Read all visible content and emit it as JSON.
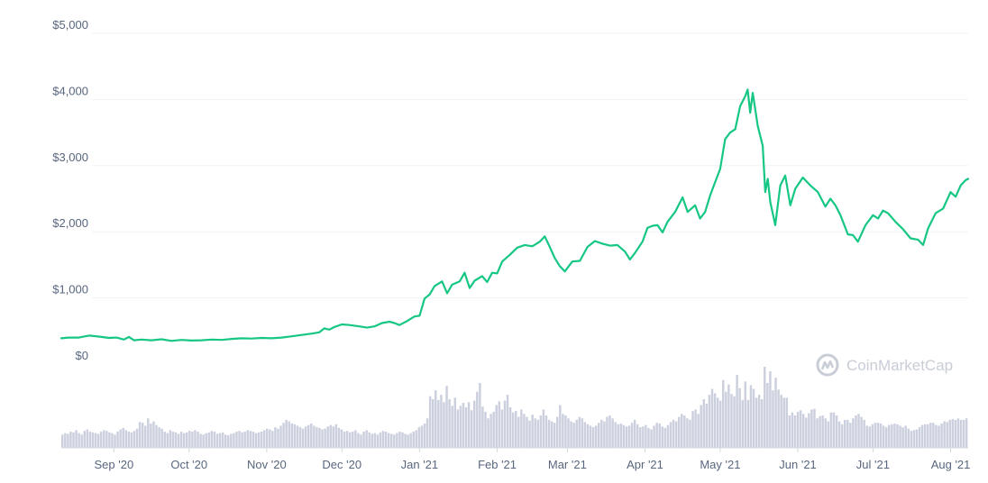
{
  "chart_data": {
    "type": "line",
    "title": "",
    "xlabel": "",
    "ylabel": "",
    "ylim": [
      0,
      5000
    ],
    "grid": true,
    "legend": "none",
    "y_ticks": [
      "$5,000",
      "$4,000",
      "$3,000",
      "$2,000",
      "$1,000",
      "$0"
    ],
    "y_tick_values": [
      5000,
      4000,
      3000,
      2000,
      1000,
      0
    ],
    "x_ticks": [
      "Sep '20",
      "Oct '20",
      "Nov '20",
      "Dec '20",
      "Jan '21",
      "Feb '21",
      "Mar '21",
      "Apr '21",
      "May '21",
      "Jun '21",
      "Jul '21",
      "Aug '21"
    ],
    "x_tick_dates": [
      "2020-09-01",
      "2020-10-01",
      "2020-11-01",
      "2020-12-01",
      "2021-01-01",
      "2021-02-01",
      "2021-03-01",
      "2021-04-01",
      "2021-05-01",
      "2021-06-01",
      "2021-07-01",
      "2021-08-01"
    ],
    "x_range": [
      "2020-08-11",
      "2021-08-08"
    ],
    "series": [
      {
        "type": "line",
        "color": "#16c784",
        "points": [
          [
            "2020-08-11",
            390
          ],
          [
            "2020-08-14",
            400
          ],
          [
            "2020-08-18",
            400
          ],
          [
            "2020-08-22",
            430
          ],
          [
            "2020-08-26",
            415
          ],
          [
            "2020-08-30",
            395
          ],
          [
            "2020-09-02",
            400
          ],
          [
            "2020-09-05",
            370
          ],
          [
            "2020-09-07",
            410
          ],
          [
            "2020-09-09",
            360
          ],
          [
            "2020-09-12",
            370
          ],
          [
            "2020-09-16",
            360
          ],
          [
            "2020-09-20",
            375
          ],
          [
            "2020-09-24",
            350
          ],
          [
            "2020-09-28",
            365
          ],
          [
            "2020-10-02",
            355
          ],
          [
            "2020-10-06",
            360
          ],
          [
            "2020-10-10",
            370
          ],
          [
            "2020-10-14",
            365
          ],
          [
            "2020-10-18",
            380
          ],
          [
            "2020-10-22",
            390
          ],
          [
            "2020-10-26",
            385
          ],
          [
            "2020-10-30",
            395
          ],
          [
            "2020-11-03",
            390
          ],
          [
            "2020-11-07",
            400
          ],
          [
            "2020-11-11",
            420
          ],
          [
            "2020-11-15",
            440
          ],
          [
            "2020-11-19",
            460
          ],
          [
            "2020-11-22",
            480
          ],
          [
            "2020-11-24",
            540
          ],
          [
            "2020-11-26",
            520
          ],
          [
            "2020-11-28",
            560
          ],
          [
            "2020-12-01",
            600
          ],
          [
            "2020-12-04",
            590
          ],
          [
            "2020-12-08",
            570
          ],
          [
            "2020-12-11",
            550
          ],
          [
            "2020-12-14",
            570
          ],
          [
            "2020-12-17",
            620
          ],
          [
            "2020-12-20",
            640
          ],
          [
            "2020-12-22",
            620
          ],
          [
            "2020-12-24",
            590
          ],
          [
            "2020-12-27",
            650
          ],
          [
            "2020-12-30",
            720
          ],
          [
            "2021-01-01",
            730
          ],
          [
            "2021-01-03",
            990
          ],
          [
            "2021-01-05",
            1050
          ],
          [
            "2021-01-07",
            1180
          ],
          [
            "2021-01-10",
            1250
          ],
          [
            "2021-01-12",
            1070
          ],
          [
            "2021-01-14",
            1200
          ],
          [
            "2021-01-17",
            1250
          ],
          [
            "2021-01-19",
            1380
          ],
          [
            "2021-01-21",
            1150
          ],
          [
            "2021-01-23",
            1260
          ],
          [
            "2021-01-26",
            1330
          ],
          [
            "2021-01-28",
            1240
          ],
          [
            "2021-01-30",
            1380
          ],
          [
            "2021-02-01",
            1370
          ],
          [
            "2021-02-03",
            1550
          ],
          [
            "2021-02-06",
            1650
          ],
          [
            "2021-02-09",
            1760
          ],
          [
            "2021-02-12",
            1800
          ],
          [
            "2021-02-15",
            1780
          ],
          [
            "2021-02-18",
            1850
          ],
          [
            "2021-02-20",
            1930
          ],
          [
            "2021-02-22",
            1770
          ],
          [
            "2021-02-24",
            1600
          ],
          [
            "2021-02-26",
            1480
          ],
          [
            "2021-02-28",
            1400
          ],
          [
            "2021-03-03",
            1550
          ],
          [
            "2021-03-06",
            1560
          ],
          [
            "2021-03-09",
            1770
          ],
          [
            "2021-03-12",
            1860
          ],
          [
            "2021-03-15",
            1820
          ],
          [
            "2021-03-18",
            1790
          ],
          [
            "2021-03-21",
            1800
          ],
          [
            "2021-03-24",
            1700
          ],
          [
            "2021-03-26",
            1580
          ],
          [
            "2021-03-28",
            1680
          ],
          [
            "2021-03-31",
            1850
          ],
          [
            "2021-04-02",
            2060
          ],
          [
            "2021-04-04",
            2090
          ],
          [
            "2021-04-06",
            2100
          ],
          [
            "2021-04-08",
            1990
          ],
          [
            "2021-04-10",
            2150
          ],
          [
            "2021-04-13",
            2300
          ],
          [
            "2021-04-16",
            2520
          ],
          [
            "2021-04-18",
            2300
          ],
          [
            "2021-04-21",
            2400
          ],
          [
            "2021-04-23",
            2200
          ],
          [
            "2021-04-25",
            2300
          ],
          [
            "2021-04-27",
            2550
          ],
          [
            "2021-04-29",
            2750
          ],
          [
            "2021-05-01",
            2950
          ],
          [
            "2021-05-03",
            3400
          ],
          [
            "2021-05-05",
            3500
          ],
          [
            "2021-05-07",
            3550
          ],
          [
            "2021-05-09",
            3900
          ],
          [
            "2021-05-11",
            4050
          ],
          [
            "2021-05-12",
            4150
          ],
          [
            "2021-05-13",
            3800
          ],
          [
            "2021-05-14",
            4100
          ],
          [
            "2021-05-16",
            3600
          ],
          [
            "2021-05-18",
            3300
          ],
          [
            "2021-05-19",
            2600
          ],
          [
            "2021-05-20",
            2800
          ],
          [
            "2021-05-21",
            2450
          ],
          [
            "2021-05-23",
            2100
          ],
          [
            "2021-05-25",
            2700
          ],
          [
            "2021-05-27",
            2850
          ],
          [
            "2021-05-29",
            2400
          ],
          [
            "2021-05-31",
            2650
          ],
          [
            "2021-06-03",
            2820
          ],
          [
            "2021-06-06",
            2700
          ],
          [
            "2021-06-09",
            2600
          ],
          [
            "2021-06-12",
            2380
          ],
          [
            "2021-06-14",
            2500
          ],
          [
            "2021-06-16",
            2400
          ],
          [
            "2021-06-18",
            2250
          ],
          [
            "2021-06-21",
            1960
          ],
          [
            "2021-06-23",
            1950
          ],
          [
            "2021-06-25",
            1850
          ],
          [
            "2021-06-28",
            2100
          ],
          [
            "2021-07-01",
            2250
          ],
          [
            "2021-07-03",
            2200
          ],
          [
            "2021-07-05",
            2320
          ],
          [
            "2021-07-07",
            2280
          ],
          [
            "2021-07-10",
            2150
          ],
          [
            "2021-07-13",
            2040
          ],
          [
            "2021-07-16",
            1900
          ],
          [
            "2021-07-19",
            1880
          ],
          [
            "2021-07-21",
            1800
          ],
          [
            "2021-07-23",
            2050
          ],
          [
            "2021-07-26",
            2280
          ],
          [
            "2021-07-29",
            2350
          ],
          [
            "2021-08-01",
            2600
          ],
          [
            "2021-08-03",
            2530
          ],
          [
            "2021-08-05",
            2700
          ],
          [
            "2021-08-07",
            2780
          ],
          [
            "2021-08-08",
            2800
          ]
        ]
      },
      {
        "type": "volume-bars",
        "color": "#ccd0de",
        "values": [
          18,
          20,
          19,
          22,
          21,
          24,
          20,
          18,
          23,
          25,
          22,
          21,
          20,
          19,
          22,
          24,
          23,
          21,
          20,
          18,
          22,
          25,
          27,
          24,
          22,
          21,
          23,
          26,
          35,
          34,
          30,
          40,
          33,
          36,
          31,
          28,
          26,
          22,
          20,
          24,
          22,
          21,
          19,
          22,
          20,
          21,
          23,
          22,
          24,
          22,
          19,
          18,
          20,
          21,
          23,
          22,
          19,
          20,
          21,
          18,
          17,
          19,
          20,
          22,
          23,
          21,
          22,
          24,
          23,
          22,
          20,
          21,
          22,
          24,
          26,
          25,
          23,
          28,
          26,
          30,
          34,
          38,
          36,
          33,
          32,
          30,
          28,
          26,
          29,
          31,
          33,
          30,
          28,
          27,
          25,
          26,
          29,
          31,
          29,
          32,
          27,
          25,
          22,
          23,
          21,
          22,
          24,
          20,
          18,
          22,
          24,
          21,
          19,
          20,
          18,
          21,
          23,
          22,
          20,
          19,
          18,
          20,
          22,
          21,
          19,
          18,
          20,
          22,
          24,
          28,
          30,
          33,
          40,
          70,
          66,
          78,
          65,
          72,
          62,
          84,
          66,
          57,
          68,
          52,
          57,
          61,
          55,
          62,
          51,
          64,
          76,
          88,
          56,
          49,
          40,
          46,
          49,
          58,
          63,
          52,
          64,
          72,
          55,
          48,
          50,
          42,
          52,
          46,
          42,
          37,
          45,
          40,
          38,
          44,
          52,
          44,
          38,
          36,
          34,
          42,
          58,
          46,
          44,
          40,
          36,
          34,
          38,
          42,
          40,
          35,
          32,
          30,
          28,
          30,
          34,
          38,
          36,
          42,
          44,
          40,
          35,
          32,
          33,
          31,
          29,
          30,
          34,
          38,
          32,
          28,
          29,
          31,
          27,
          25,
          30,
          34,
          33,
          29,
          27,
          31,
          35,
          38,
          36,
          42,
          46,
          44,
          40,
          38,
          50,
          52,
          46,
          58,
          66,
          60,
          72,
          80,
          74,
          68,
          64,
          92,
          76,
          86,
          73,
          70,
          99,
          81,
          65,
          90,
          65,
          85,
          80,
          68,
          72,
          66,
          110,
          88,
          104,
          78,
          95,
          79,
          72,
          68,
          68,
          44,
          48,
          44,
          49,
          51,
          46,
          41,
          47,
          52,
          53,
          40,
          43,
          44,
          40,
          36,
          48,
          48,
          44,
          36,
          32,
          38,
          38,
          34,
          40,
          44,
          46,
          42,
          38,
          30,
          29,
          32,
          34,
          34,
          33,
          30,
          28,
          31,
          32,
          33,
          32,
          30,
          28,
          30,
          26,
          23,
          24,
          25,
          28,
          31,
          32,
          32,
          34,
          34,
          31,
          30,
          33,
          36,
          35,
          38,
          39,
          38,
          40,
          38,
          38,
          40
        ]
      }
    ],
    "watermark": "CoinMarketCap"
  }
}
